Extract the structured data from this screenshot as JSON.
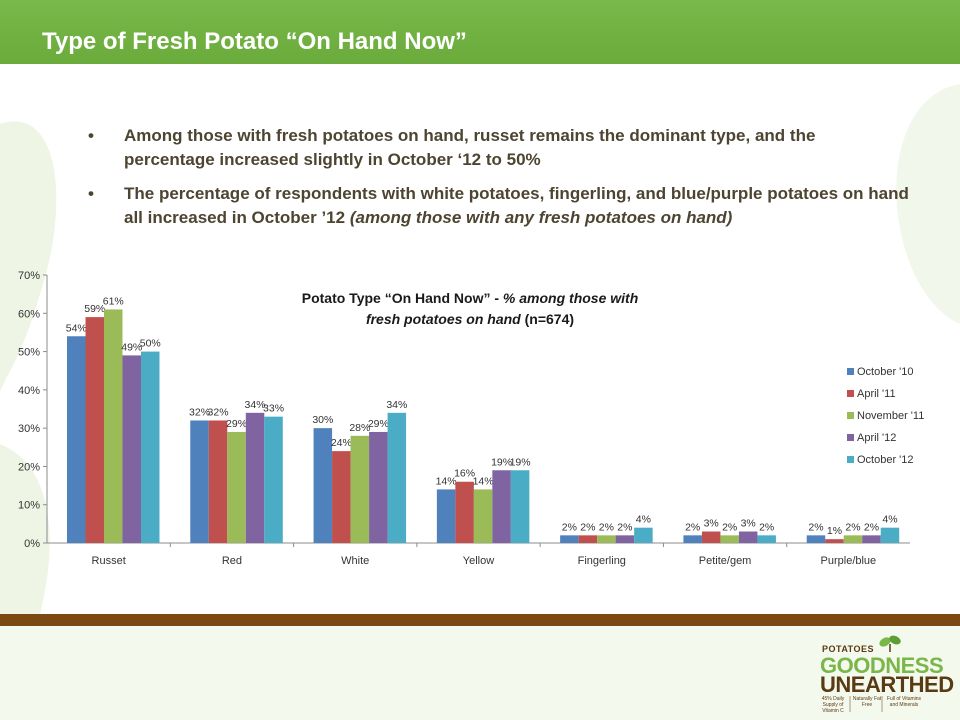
{
  "slide": {
    "title": "Type of Fresh Potato “On Hand Now”",
    "bullets": [
      {
        "text": "Among those with fresh potatoes on hand, russet remains the dominant type, and the percentage increased slightly in October ‘12 to 50%",
        "italic": ""
      },
      {
        "text": "The percentage of respondents with white potatoes, fingerling, and blue/purple potatoes on hand all increased in October ’12 ",
        "italic": "(among those with any fresh potatoes on hand)"
      }
    ]
  },
  "chart_title": {
    "line1_plain": "Potato Type “On Hand Now” - ",
    "line1_italic": "% among those with",
    "line2_italic": "fresh potatoes on hand",
    "line2_plain": " (n=674)"
  },
  "chart_data": {
    "type": "bar",
    "categories": [
      "Russet",
      "Red",
      "White",
      "Yellow",
      "Fingerling",
      "Petite/gem",
      "Purple/blue"
    ],
    "series": [
      {
        "name": "October '10",
        "color": "#4f81bd",
        "values": [
          54,
          32,
          30,
          14,
          2,
          2,
          2
        ]
      },
      {
        "name": "April '11",
        "color": "#c0504d",
        "values": [
          59,
          32,
          24,
          16,
          2,
          3,
          1
        ]
      },
      {
        "name": "November '11",
        "color": "#9bbb59",
        "values": [
          61,
          29,
          28,
          14,
          2,
          2,
          2
        ]
      },
      {
        "name": "April '12",
        "color": "#8064a2",
        "values": [
          49,
          34,
          29,
          19,
          2,
          3,
          2
        ]
      },
      {
        "name": "October '12",
        "color": "#4bacc6",
        "values": [
          50,
          33,
          34,
          19,
          4,
          2,
          4
        ]
      }
    ],
    "yticks": [
      "0%",
      "10%",
      "20%",
      "30%",
      "40%",
      "50%",
      "60%",
      "70%"
    ],
    "ylim": [
      0,
      70
    ],
    "value_suffix": "%",
    "legend_position": "right",
    "grid": false
  },
  "logo": {
    "line1": "POTATOES",
    "line2": "GOODNESS",
    "line3": "UNEARTHED",
    "sub1": "45% Daily Supply of Vitamin C",
    "sub2": "Naturally Fat Free",
    "sub3": "Full of Vitamins and Minerals"
  }
}
